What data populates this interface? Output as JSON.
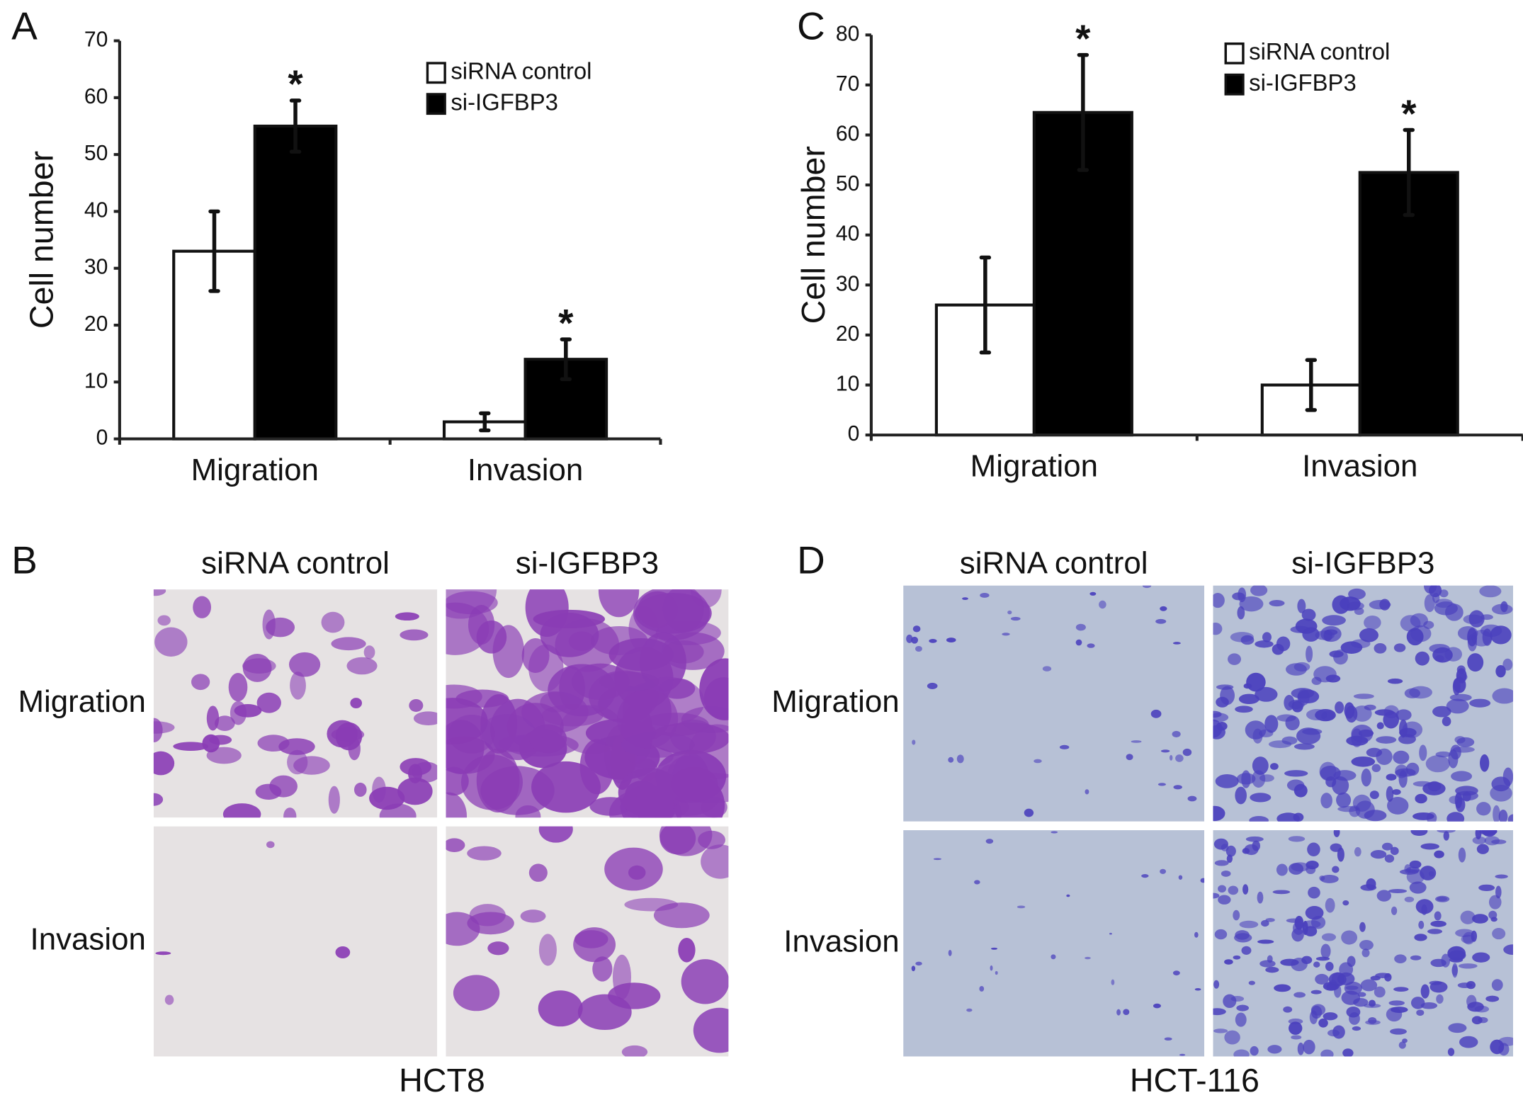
{
  "chart_data": [
    {
      "type": "bar",
      "panel_label": "A",
      "ylabel": "Cell number",
      "categories": [
        "Migration",
        "Invasion"
      ],
      "series": [
        {
          "name": "siRNA control",
          "color": "#ffffff",
          "values": [
            33,
            3
          ],
          "errors": [
            7,
            1.5
          ],
          "significance_labels": [
            null,
            null
          ]
        },
        {
          "name": "si-IGFBP3",
          "color": "#000000",
          "values": [
            55,
            14
          ],
          "errors": [
            4.5,
            3.5
          ],
          "significance_labels": [
            "*",
            "*"
          ]
        }
      ],
      "ylim": [
        0,
        70
      ],
      "yticks": [
        0,
        10,
        20,
        30,
        40,
        50,
        60,
        70
      ],
      "grid": false,
      "legend": "top-right"
    },
    {
      "type": "bar",
      "panel_label": "C",
      "ylabel": "Cell number",
      "categories": [
        "Migration",
        "Invasion"
      ],
      "series": [
        {
          "name": "siRNA control",
          "color": "#ffffff",
          "values": [
            26,
            10
          ],
          "errors": [
            9.5,
            5
          ],
          "significance_labels": [
            null,
            null
          ]
        },
        {
          "name": "si-IGFBP3",
          "color": "#000000",
          "values": [
            64.5,
            52.5
          ],
          "errors": [
            11.5,
            8.5
          ],
          "significance_labels": [
            "*",
            "*"
          ]
        }
      ],
      "ylim": [
        0,
        80
      ],
      "yticks": [
        0,
        10,
        20,
        30,
        40,
        50,
        60,
        70,
        80
      ],
      "grid": false,
      "legend": "top-right"
    }
  ],
  "image_panels": [
    {
      "panel_label": "B",
      "columns": [
        "siRNA control",
        "si-IGFBP3"
      ],
      "rows": [
        "Migration",
        "Invasion"
      ],
      "caption": "HCT8"
    },
    {
      "panel_label": "D",
      "columns": [
        "siRNA control",
        "si-IGFBP3"
      ],
      "rows": [
        "Migration",
        "Invasion"
      ],
      "caption": "HCT-116"
    }
  ]
}
